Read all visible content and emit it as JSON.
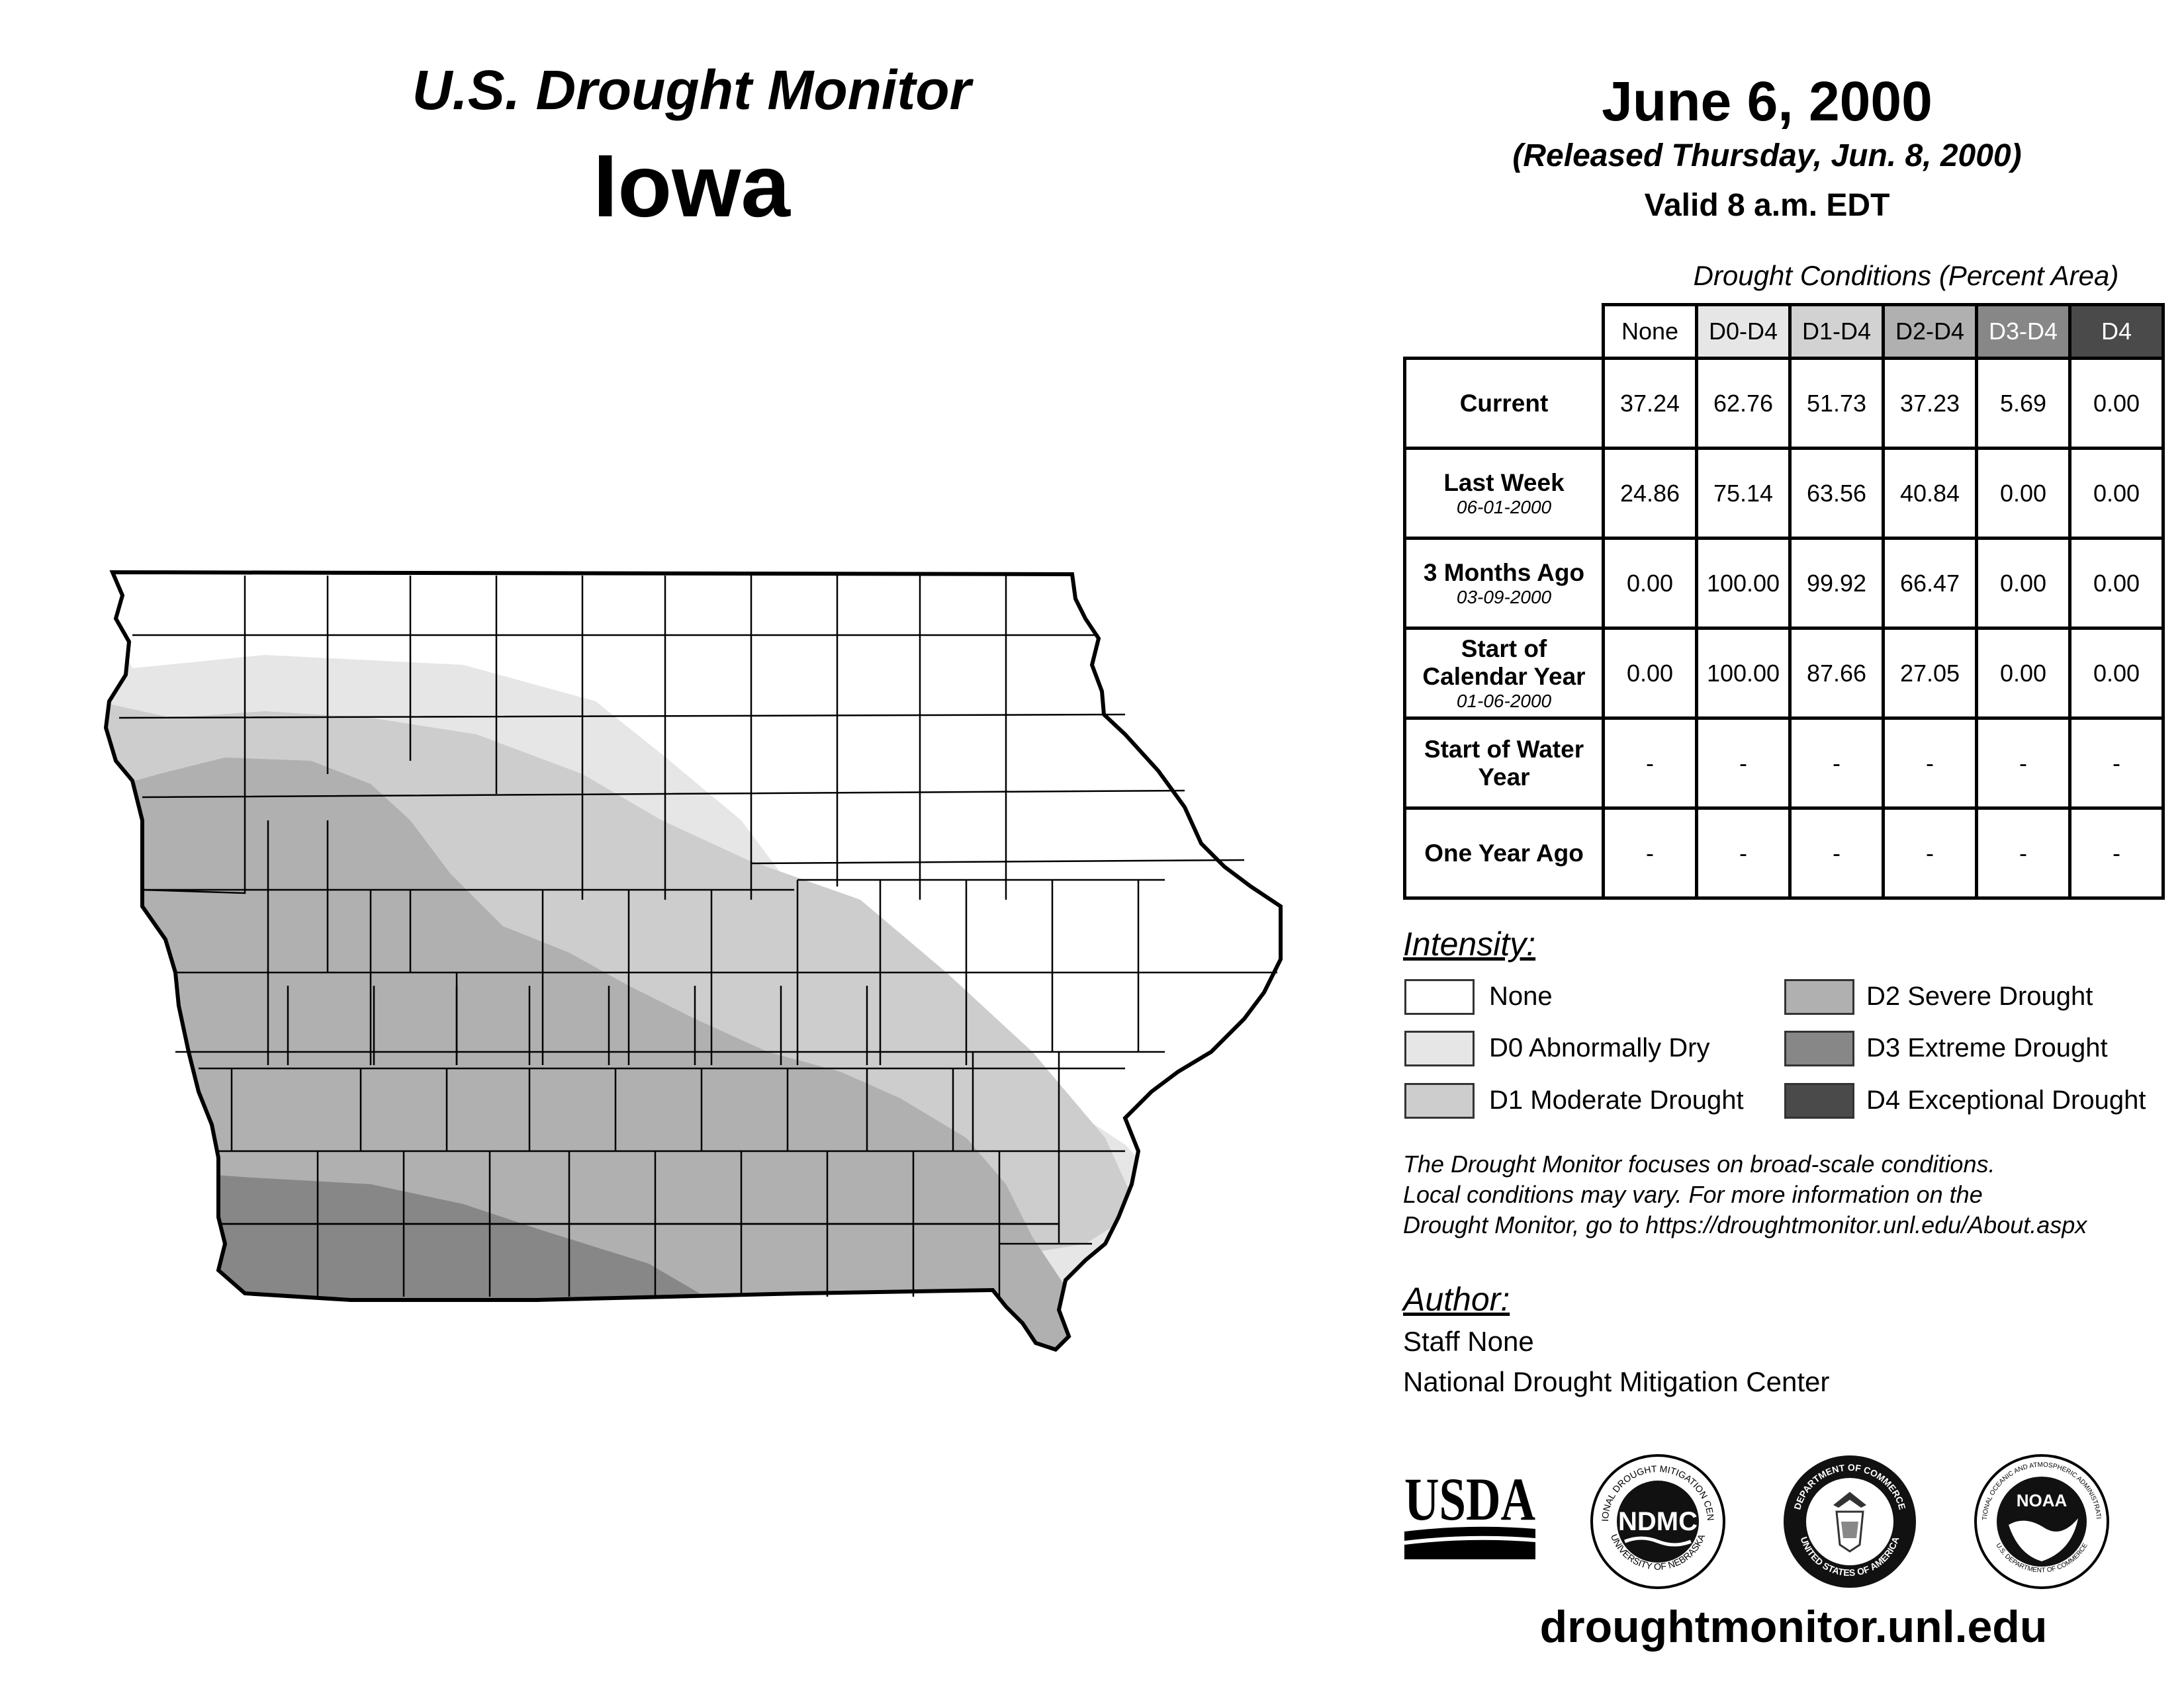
{
  "header": {
    "subtitle": "U.S. Drought Monitor",
    "state": "Iowa",
    "date": "June 6, 2000",
    "released": "(Released Thursday, Jun. 8, 2000)",
    "valid": "Valid 8 a.m. EDT"
  },
  "table": {
    "caption": "Drought Conditions (Percent Area)",
    "columns": [
      "None",
      "D0-D4",
      "D1-D4",
      "D2-D4",
      "D3-D4",
      "D4"
    ],
    "column_colors": [
      "#ffffff",
      "#e6e6e6",
      "#d2d2d2",
      "#b0b0b0",
      "#878787",
      "#4a4a4a"
    ],
    "rows": [
      {
        "label": "Current",
        "date": "",
        "values": [
          "37.24",
          "62.76",
          "51.73",
          "37.23",
          "5.69",
          "0.00"
        ]
      },
      {
        "label": "Last Week",
        "date": "06-01-2000",
        "values": [
          "24.86",
          "75.14",
          "63.56",
          "40.84",
          "0.00",
          "0.00"
        ]
      },
      {
        "label": "3 Months Ago",
        "date": "03-09-2000",
        "values": [
          "0.00",
          "100.00",
          "99.92",
          "66.47",
          "0.00",
          "0.00"
        ]
      },
      {
        "label": "Start of Calendar Year",
        "date": "01-06-2000",
        "values": [
          "0.00",
          "100.00",
          "87.66",
          "27.05",
          "0.00",
          "0.00"
        ]
      },
      {
        "label": "Start of Water Year",
        "date": "",
        "values": [
          "-",
          "-",
          "-",
          "-",
          "-",
          "-"
        ]
      },
      {
        "label": "One Year Ago",
        "date": "",
        "values": [
          "-",
          "-",
          "-",
          "-",
          "-",
          "-"
        ]
      }
    ]
  },
  "legend": {
    "title": "Intensity:",
    "items": [
      {
        "label": "None",
        "color": "#ffffff"
      },
      {
        "label": "D2 Severe Drought",
        "color": "#b0b0b0"
      },
      {
        "label": "D0 Abnormally Dry",
        "color": "#e6e6e6"
      },
      {
        "label": "D3 Extreme Drought",
        "color": "#878787"
      },
      {
        "label": "D1 Moderate Drought",
        "color": "#cdcdcd"
      },
      {
        "label": "D4 Exceptional Drought",
        "color": "#4a4a4a"
      }
    ]
  },
  "note": {
    "line1": "The Drought Monitor focuses on broad-scale conditions.",
    "line2": "Local conditions may vary. For more information on the",
    "line3": "Drought Monitor, go to https://droughtmonitor.unl.edu/About.aspx"
  },
  "author": {
    "title": "Author:",
    "name": "Staff None",
    "org": "National Drought Mitigation Center"
  },
  "logos": {
    "usda": "USDA",
    "ndmc": "NDMC",
    "ndmc_ring_top": "NATIONAL DROUGHT MITIGATION CENTER",
    "ndmc_ring_bottom": "UNIVERSITY OF NEBRASKA",
    "doc_ring_top": "DEPARTMENT OF COMMERCE",
    "doc_ring_bottom": "UNITED STATES OF AMERICA",
    "noaa": "NOAA",
    "noaa_ring": "NATIONAL OCEANIC AND ATMOSPHERIC ADMINISTRATION",
    "noaa_ring_bottom": "U.S. DEPARTMENT OF COMMERCE"
  },
  "website": "droughtmonitor.unl.edu"
}
